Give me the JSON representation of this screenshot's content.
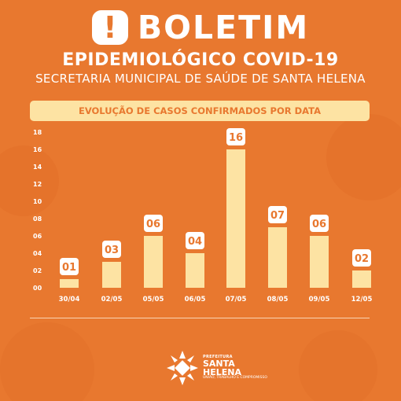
{
  "header": {
    "title": "BOLETIM",
    "subtitle": "EPIDEMIOLÓGICO COVID-19",
    "secretaria": "SECRETARIA MUNICIPAL DE SAÚDE DE SANTA HELENA",
    "chart_heading": "EVOLUÇÃO DE CASOS CONFIRMADOS POR DATA"
  },
  "chart_data": {
    "type": "bar",
    "title": "EVOLUÇÃO DE CASOS CONFIRMADOS POR DATA",
    "categories": [
      "30/04",
      "02/05",
      "05/05",
      "06/05",
      "07/05",
      "08/05",
      "09/05",
      "12/05"
    ],
    "values": [
      1,
      3,
      6,
      4,
      16,
      7,
      6,
      2
    ],
    "data_labels": [
      "01",
      "03",
      "06",
      "04",
      "16",
      "07",
      "06",
      "02"
    ],
    "y_ticks": [
      "00",
      "02",
      "04",
      "06",
      "08",
      "10",
      "12",
      "14",
      "16",
      "18"
    ],
    "ylim": [
      0,
      18
    ],
    "grid": false,
    "bar_color": "#FDE3A3",
    "label_box_color": "#FFFFFF",
    "label_text_color": "#E8782F"
  },
  "logo": {
    "line1": "PREFEITURA",
    "line2": "SANTA",
    "line3": "HELENA",
    "line4": "UNIÃO, TRABALHO E COMPROMISSO"
  },
  "colors": {
    "background": "#E8782F",
    "accent": "#FDE3A3",
    "text": "#FFFFFF"
  }
}
